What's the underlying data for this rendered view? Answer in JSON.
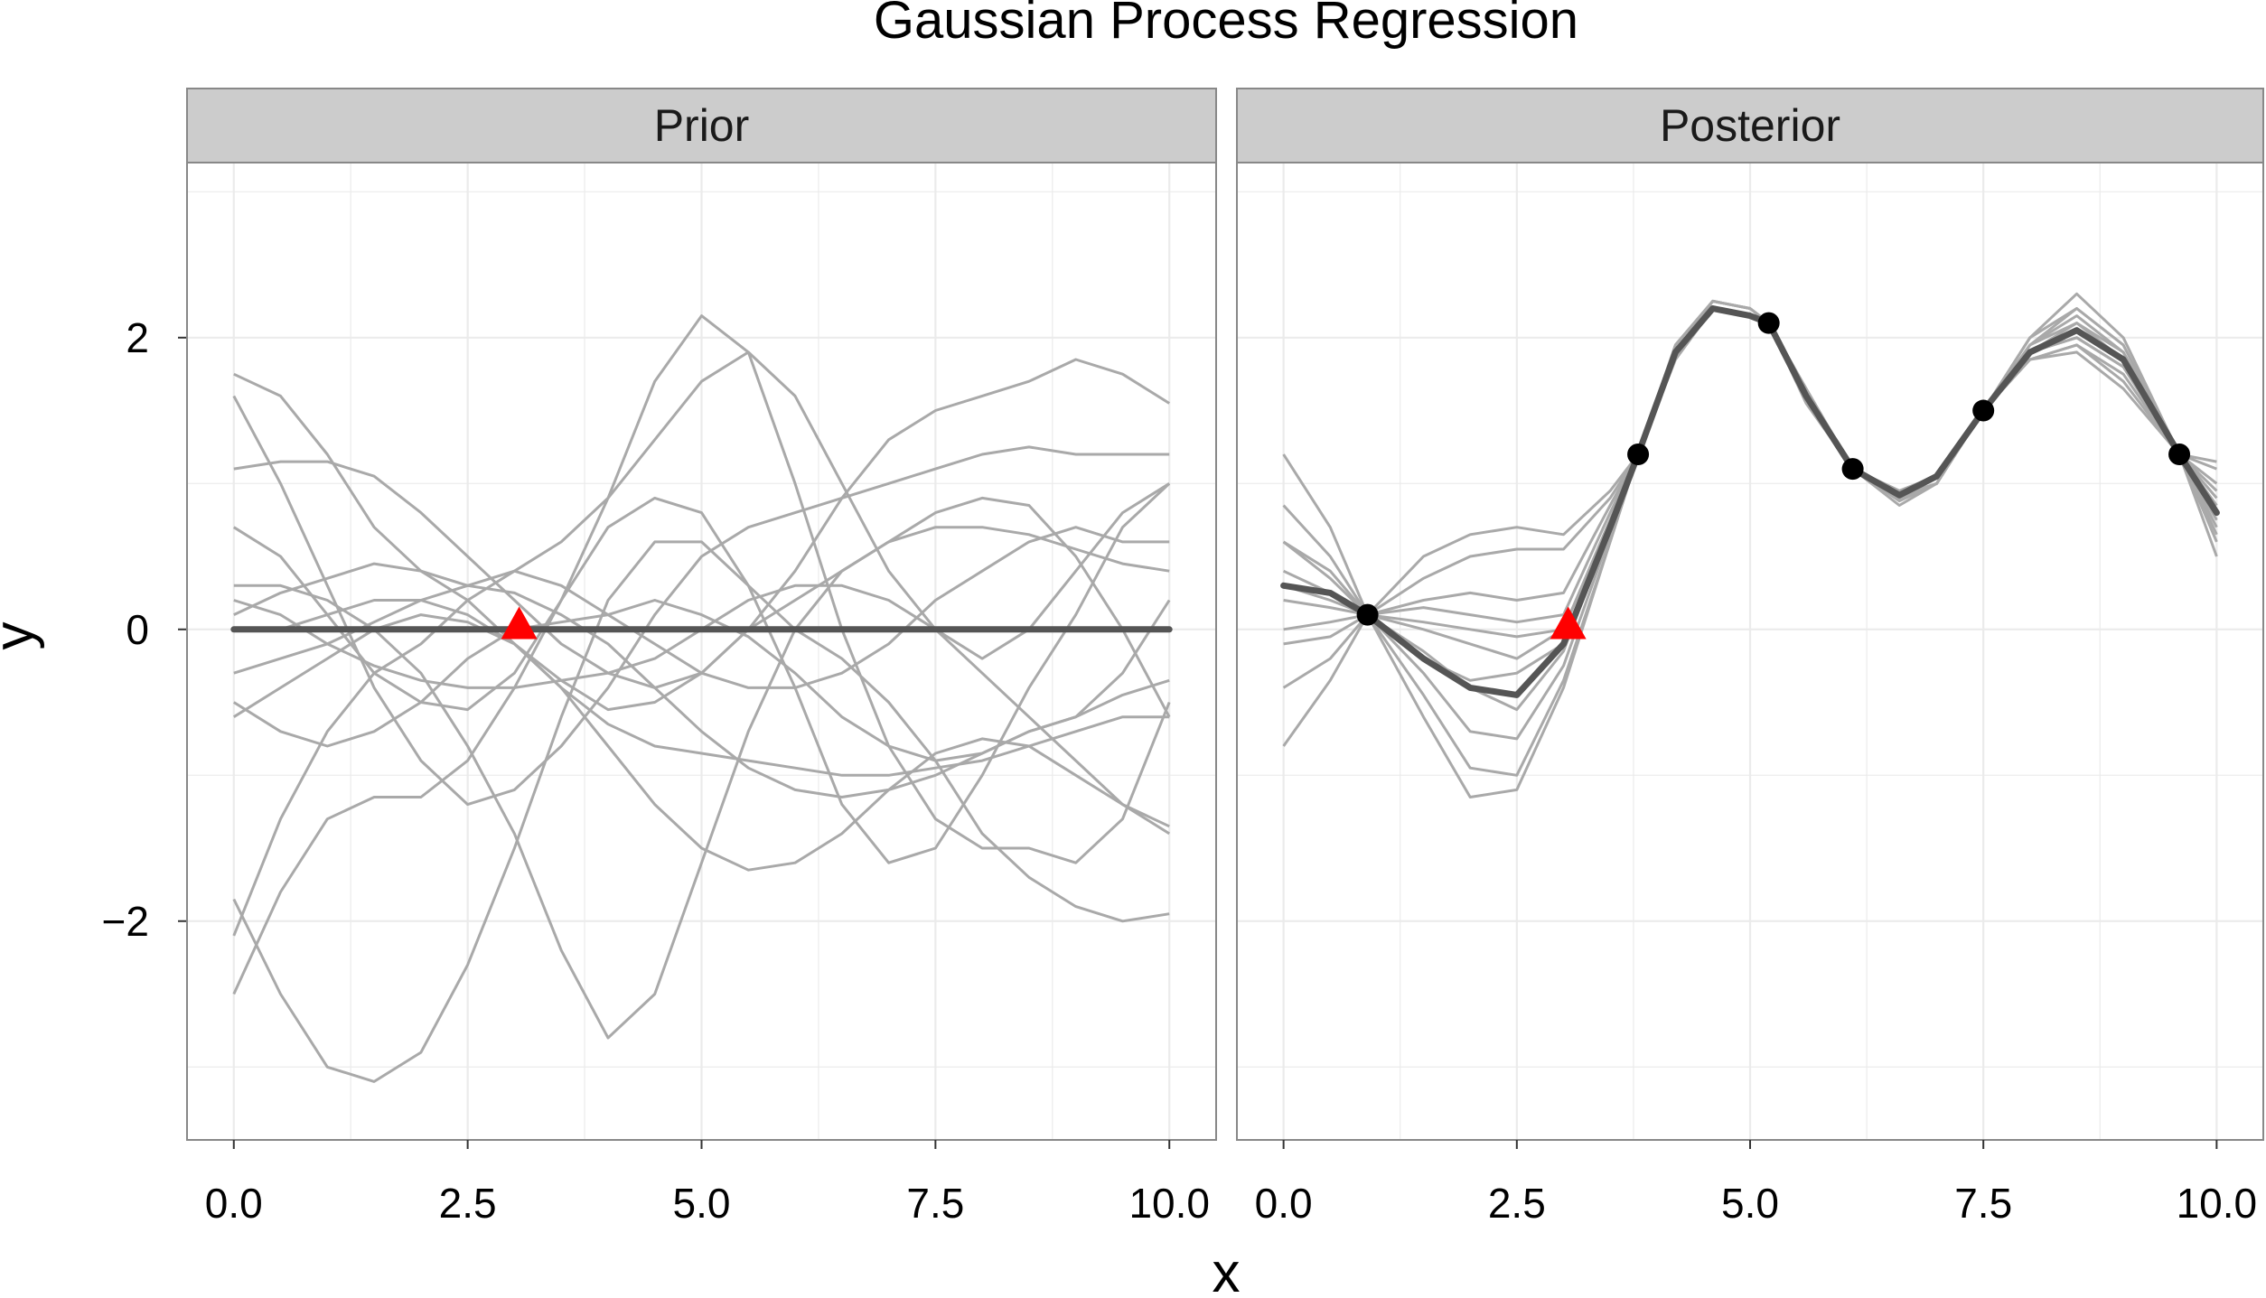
{
  "chart_data": {
    "type": "line",
    "title": "Gaussian Process Regression",
    "xlabel": "x",
    "ylabel": "y",
    "xlim": [
      -0.5,
      10.5
    ],
    "ylim": [
      -3.5,
      3.2
    ],
    "x_ticks": [
      0.0,
      2.5,
      5.0,
      7.5,
      10.0
    ],
    "x_tick_labels": [
      "0.0",
      "2.5",
      "5.0",
      "7.5",
      "10.0"
    ],
    "y_ticks": [
      -2,
      0,
      2
    ],
    "y_tick_labels": [
      "−2",
      "0",
      "2"
    ],
    "grid": true,
    "colors": {
      "sample": "#a9a9a9",
      "mean": "#555555",
      "strip_fill": "#cccccc",
      "observation": "#000000",
      "query_point": "#ff0000",
      "grid": "#ebebeb",
      "frame": "#888888"
    },
    "panels": [
      {
        "name": "Prior",
        "strip_label": "Prior",
        "mean": {
          "x": [
            0,
            10
          ],
          "y": [
            0,
            0
          ]
        },
        "query_point": {
          "x": 3.05,
          "y": 0.02
        },
        "observations": [],
        "sample_x": [
          0,
          0.5,
          1,
          1.5,
          2,
          2.5,
          3,
          3.5,
          4,
          4.5,
          5,
          5.5,
          6,
          6.5,
          7,
          7.5,
          8,
          8.5,
          9,
          9.5,
          10
        ],
        "samples": [
          [
            1.75,
            1.6,
            1.2,
            0.7,
            0.4,
            0.3,
            0.4,
            0.6,
            0.9,
            1.3,
            1.7,
            1.9,
            1.6,
            1.0,
            0.4,
            0.0,
            -0.2,
            0.0,
            0.4,
            0.8,
            1.0
          ],
          [
            1.6,
            1.0,
            0.3,
            -0.4,
            -0.9,
            -1.2,
            -1.1,
            -0.8,
            -0.4,
            0.1,
            0.5,
            0.7,
            0.8,
            0.9,
            1.0,
            1.1,
            1.2,
            1.25,
            1.2,
            1.2,
            1.2
          ],
          [
            1.1,
            1.15,
            1.15,
            1.05,
            0.8,
            0.5,
            0.2,
            -0.1,
            -0.3,
            -0.4,
            -0.3,
            0.0,
            0.4,
            0.9,
            1.3,
            1.5,
            1.6,
            1.7,
            1.85,
            1.75,
            1.55
          ],
          [
            0.7,
            0.5,
            0.1,
            -0.3,
            -0.5,
            -0.55,
            -0.3,
            0.2,
            0.9,
            1.7,
            2.15,
            1.9,
            1.0,
            0.0,
            -0.8,
            -1.3,
            -1.5,
            -1.5,
            -1.6,
            -1.3,
            -0.5
          ],
          [
            -2.5,
            -1.8,
            -1.3,
            -1.15,
            -1.15,
            -0.9,
            -0.4,
            0.2,
            0.7,
            0.9,
            0.8,
            0.3,
            -0.4,
            -1.2,
            -1.6,
            -1.5,
            -1.0,
            -0.4,
            0.1,
            0.7,
            1.0
          ],
          [
            -1.85,
            -2.5,
            -3.0,
            -3.1,
            -2.9,
            -2.3,
            -1.5,
            -0.6,
            0.2,
            0.6,
            0.6,
            0.3,
            0.0,
            -0.2,
            -0.5,
            -0.9,
            -1.4,
            -1.7,
            -1.9,
            -2.0,
            -1.95
          ],
          [
            -2.1,
            -1.3,
            -0.7,
            -0.3,
            -0.1,
            0.2,
            0.4,
            0.3,
            0.1,
            -0.1,
            -0.3,
            -0.4,
            -0.4,
            -0.3,
            -0.1,
            0.2,
            0.4,
            0.6,
            0.7,
            0.6,
            0.6
          ],
          [
            0.3,
            0.3,
            0.2,
            0.0,
            -0.3,
            -0.8,
            -1.4,
            -2.2,
            -2.8,
            -2.5,
            -1.6,
            -0.7,
            0.0,
            0.4,
            0.6,
            0.8,
            0.9,
            0.85,
            0.5,
            0.0,
            -0.6
          ],
          [
            -0.5,
            -0.7,
            -0.8,
            -0.7,
            -0.5,
            -0.2,
            0.0,
            0.05,
            0.1,
            0.2,
            0.1,
            -0.05,
            -0.3,
            -0.6,
            -0.8,
            -0.9,
            -0.85,
            -0.7,
            -0.6,
            -0.3,
            0.2
          ],
          [
            0.1,
            0.25,
            0.35,
            0.45,
            0.4,
            0.2,
            -0.1,
            -0.4,
            -0.65,
            -0.8,
            -0.85,
            -0.9,
            -0.95,
            -1.0,
            -1.0,
            -0.95,
            -0.9,
            -0.8,
            -0.7,
            -0.6,
            -0.6
          ],
          [
            -0.6,
            -0.4,
            -0.2,
            0.0,
            0.1,
            0.05,
            -0.1,
            -0.35,
            -0.55,
            -0.5,
            -0.3,
            0.0,
            0.2,
            0.4,
            0.6,
            0.7,
            0.7,
            0.65,
            0.55,
            0.45,
            0.4
          ],
          [
            0.2,
            0.1,
            -0.1,
            -0.25,
            -0.35,
            -0.4,
            -0.4,
            -0.35,
            -0.3,
            -0.2,
            0.0,
            0.2,
            0.3,
            0.3,
            0.2,
            0.0,
            -0.3,
            -0.6,
            -0.9,
            -1.2,
            -1.35
          ],
          [
            -0.3,
            -0.2,
            -0.1,
            0.05,
            0.2,
            0.3,
            0.25,
            0.1,
            -0.1,
            -0.4,
            -0.7,
            -0.95,
            -1.1,
            -1.15,
            -1.1,
            -1.0,
            -0.85,
            -0.7,
            -0.6,
            -0.45,
            -0.35
          ],
          [
            0.0,
            0.0,
            0.1,
            0.2,
            0.2,
            0.1,
            -0.1,
            -0.4,
            -0.8,
            -1.2,
            -1.5,
            -1.65,
            -1.6,
            -1.4,
            -1.1,
            -0.85,
            -0.75,
            -0.8,
            -1.0,
            -1.2,
            -1.4
          ]
        ]
      },
      {
        "name": "Posterior",
        "strip_label": "Posterior",
        "mean": {
          "x": [
            0,
            0.5,
            0.9,
            1.5,
            2.0,
            2.5,
            3.0,
            3.5,
            3.8,
            4.2,
            4.6,
            5.0,
            5.2,
            5.6,
            6.1,
            6.6,
            7.0,
            7.5,
            8.0,
            8.5,
            9.0,
            9.6,
            10.0
          ],
          "y": [
            0.3,
            0.25,
            0.1,
            -0.2,
            -0.4,
            -0.45,
            -0.1,
            0.7,
            1.2,
            1.9,
            2.2,
            2.15,
            2.1,
            1.6,
            1.1,
            0.92,
            1.05,
            1.5,
            1.9,
            2.05,
            1.85,
            1.2,
            0.8
          ]
        },
        "query_point": {
          "x": 3.05,
          "y": 0.02
        },
        "observations": [
          {
            "x": 0.9,
            "y": 0.1
          },
          {
            "x": 3.8,
            "y": 1.2
          },
          {
            "x": 5.2,
            "y": 2.1
          },
          {
            "x": 6.1,
            "y": 1.1
          },
          {
            "x": 7.5,
            "y": 1.5
          },
          {
            "x": 9.6,
            "y": 1.2
          }
        ],
        "sample_x": [
          0,
          0.5,
          0.9,
          1.5,
          2.0,
          2.5,
          3.0,
          3.5,
          3.8,
          4.2,
          4.6,
          5.0,
          5.2,
          5.6,
          6.1,
          6.6,
          7.0,
          7.5,
          8.0,
          8.5,
          9.0,
          9.6,
          10.0
        ],
        "samples": [
          [
            1.2,
            0.7,
            0.1,
            -0.6,
            -1.15,
            -1.1,
            -0.4,
            0.6,
            1.2,
            1.95,
            2.25,
            2.2,
            2.1,
            1.6,
            1.1,
            0.9,
            1.0,
            1.5,
            2.0,
            2.2,
            1.95,
            1.2,
            0.75
          ],
          [
            0.85,
            0.5,
            0.1,
            -0.45,
            -0.95,
            -1.0,
            -0.35,
            0.6,
            1.2,
            1.9,
            2.2,
            2.15,
            2.1,
            1.65,
            1.1,
            0.95,
            1.05,
            1.5,
            1.95,
            2.15,
            1.9,
            1.2,
            0.85
          ],
          [
            0.6,
            0.35,
            0.1,
            -0.3,
            -0.7,
            -0.75,
            -0.25,
            0.65,
            1.2,
            1.9,
            2.2,
            2.15,
            2.1,
            1.6,
            1.1,
            0.9,
            1.0,
            1.5,
            1.9,
            2.0,
            1.8,
            1.2,
            0.95
          ],
          [
            0.4,
            0.25,
            0.1,
            -0.15,
            -0.4,
            -0.55,
            -0.15,
            0.7,
            1.2,
            1.85,
            2.2,
            2.15,
            2.1,
            1.6,
            1.1,
            0.92,
            1.05,
            1.5,
            1.85,
            1.95,
            1.7,
            1.2,
            1.1
          ],
          [
            0.2,
            0.15,
            0.1,
            0.0,
            -0.1,
            -0.2,
            0.0,
            0.75,
            1.2,
            1.9,
            2.25,
            2.2,
            2.1,
            1.55,
            1.1,
            0.85,
            1.0,
            1.5,
            1.95,
            2.1,
            1.85,
            1.2,
            0.7
          ],
          [
            0.0,
            0.05,
            0.1,
            0.15,
            0.1,
            0.05,
            0.1,
            0.8,
            1.2,
            1.95,
            2.25,
            2.2,
            2.1,
            1.6,
            1.1,
            0.88,
            1.0,
            1.5,
            1.9,
            2.0,
            1.8,
            1.2,
            0.9
          ],
          [
            -0.1,
            -0.05,
            0.1,
            0.2,
            0.25,
            0.2,
            0.25,
            0.85,
            1.2,
            1.9,
            2.2,
            2.15,
            2.1,
            1.6,
            1.1,
            0.9,
            1.05,
            1.5,
            1.85,
            1.9,
            1.65,
            1.2,
            1.15
          ],
          [
            -0.4,
            -0.2,
            0.1,
            0.35,
            0.5,
            0.55,
            0.55,
            0.9,
            1.2,
            1.9,
            2.25,
            2.2,
            2.1,
            1.6,
            1.1,
            0.92,
            1.0,
            1.5,
            2.0,
            2.3,
            2.0,
            1.2,
            0.5
          ],
          [
            -0.8,
            -0.35,
            0.1,
            0.5,
            0.65,
            0.7,
            0.65,
            0.95,
            1.2,
            1.85,
            2.2,
            2.15,
            2.1,
            1.65,
            1.1,
            0.95,
            1.05,
            1.5,
            1.9,
            2.1,
            1.9,
            1.2,
            0.6
          ],
          [
            0.3,
            0.2,
            0.1,
            0.05,
            0.0,
            -0.05,
            0.0,
            0.75,
            1.2,
            1.9,
            2.2,
            2.15,
            2.1,
            1.6,
            1.1,
            0.9,
            1.0,
            1.5,
            1.85,
            1.95,
            1.75,
            1.2,
            1.0
          ],
          [
            0.6,
            0.4,
            0.1,
            -0.2,
            -0.35,
            -0.3,
            -0.1,
            0.7,
            1.2,
            1.9,
            2.2,
            2.15,
            2.1,
            1.6,
            1.1,
            0.9,
            1.05,
            1.5,
            1.95,
            2.2,
            1.95,
            1.2,
            0.65
          ]
        ]
      }
    ]
  }
}
